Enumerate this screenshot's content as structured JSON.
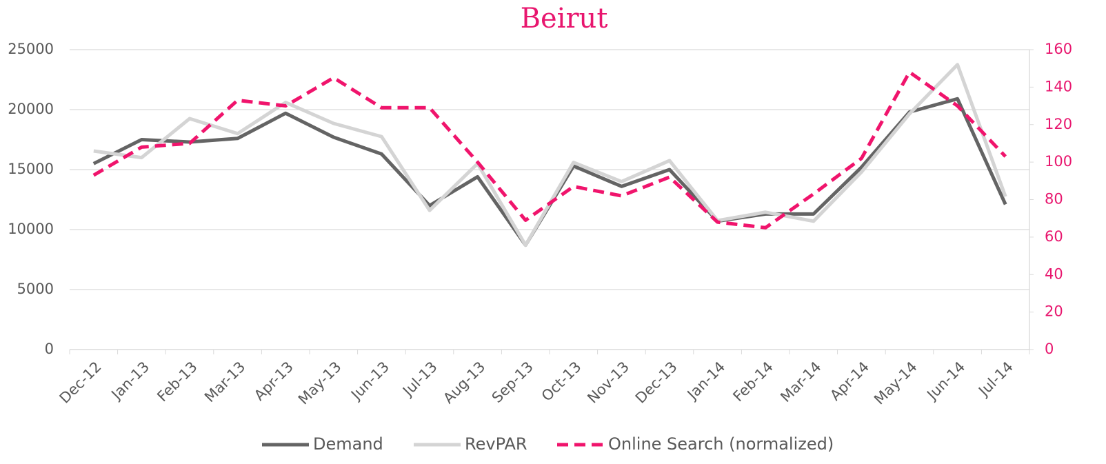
{
  "chart_data": {
    "type": "line",
    "title": "Beirut",
    "categories": [
      "Dec-12",
      "Jan-13",
      "Feb-13",
      "Mar-13",
      "Apr-13",
      "May-13",
      "Jun-13",
      "Jul-13",
      "Aug-13",
      "Sep-13",
      "Oct-13",
      "Nov-13",
      "Dec-13",
      "Jan-14",
      "Feb-14",
      "Mar-14",
      "Apr-14",
      "May-14",
      "Jun-14",
      "Jul-14"
    ],
    "series": [
      {
        "name": "Demand",
        "color": "#646464",
        "dash": false,
        "values": [
          15500,
          17500,
          17300,
          17600,
          19700,
          17700,
          16300,
          12000,
          14400,
          8700,
          15300,
          13600,
          15000,
          10700,
          11300,
          11300,
          15200,
          19800,
          20900,
          12100
        ]
      },
      {
        "name": "RevPAR",
        "color": "#d4d4d4",
        "dash": false,
        "values": [
          16550,
          16000,
          19250,
          18000,
          20600,
          18850,
          17750,
          11600,
          15500,
          8700,
          15600,
          14000,
          15750,
          10750,
          11450,
          10700,
          14800,
          19650,
          23750,
          12750
        ]
      },
      {
        "name": "Online Search (normalized)",
        "color": "#f0146c",
        "dash": true,
        "axis": "y2",
        "values": [
          93,
          108,
          110,
          133,
          130,
          145,
          129,
          129,
          100,
          69,
          87,
          82,
          92,
          68,
          65,
          83,
          102,
          148,
          130,
          103
        ]
      }
    ],
    "ylim": [
      0,
      25000
    ],
    "yticks": [
      0,
      5000,
      10000,
      15000,
      20000,
      25000
    ],
    "y2lim": [
      0,
      160
    ],
    "y2ticks": [
      0,
      20,
      40,
      60,
      80,
      100,
      120,
      140,
      160
    ],
    "grid": true,
    "legend": "bottom"
  }
}
